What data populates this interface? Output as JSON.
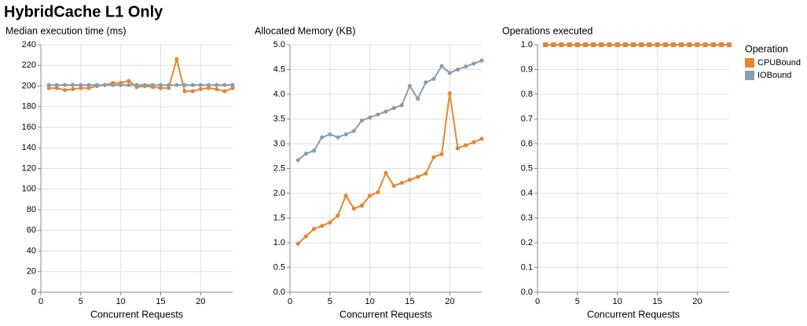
{
  "title": "HybridCache L1 Only",
  "legend_title": "Operation",
  "chart_data": [
    {
      "type": "line",
      "title": "Median execution time (ms)",
      "xlabel": "Concurrent Requests",
      "x": [
        1,
        2,
        3,
        4,
        5,
        6,
        7,
        8,
        9,
        10,
        11,
        12,
        13,
        14,
        15,
        16,
        17,
        18,
        19,
        20,
        21,
        22,
        23,
        24
      ],
      "xlim": [
        0,
        24
      ],
      "xticks": [
        0,
        5,
        10,
        15,
        20
      ],
      "ylim": [
        0,
        240
      ],
      "yticks": [
        0,
        20,
        40,
        60,
        80,
        100,
        120,
        140,
        160,
        180,
        200,
        220,
        240
      ],
      "grid": true,
      "marker": "circle",
      "series": [
        {
          "name": "CPUBound",
          "color": "#e8852f",
          "values": [
            198,
            198,
            196,
            197,
            198,
            198,
            200,
            201,
            203,
            203,
            205,
            199,
            200,
            199,
            198,
            198,
            226,
            195,
            195,
            197,
            198,
            197,
            195,
            198
          ]
        },
        {
          "name": "IOBound",
          "color": "#8a9dab",
          "values": [
            201,
            201,
            201,
            201,
            201,
            201,
            201,
            201,
            201,
            201,
            201,
            201,
            201,
            201,
            201,
            201,
            201,
            201,
            201,
            201,
            201,
            201,
            201,
            201
          ]
        }
      ]
    },
    {
      "type": "line",
      "title": "Allocated Memory (KB)",
      "xlabel": "Concurrent Requests",
      "x": [
        1,
        2,
        3,
        4,
        5,
        6,
        7,
        8,
        9,
        10,
        11,
        12,
        13,
        14,
        15,
        16,
        17,
        18,
        19,
        20,
        21,
        22,
        23,
        24
      ],
      "xlim": [
        0,
        24
      ],
      "xticks": [
        0,
        5,
        10,
        15,
        20
      ],
      "ylim": [
        0,
        5
      ],
      "yticks": [
        {
          "value": 0,
          "label": "0.0"
        },
        0.5,
        {
          "value": 1,
          "label": "1.0"
        },
        1.5,
        {
          "value": 2,
          "label": "2.0"
        },
        2.5,
        {
          "value": 3,
          "label": "3.0"
        },
        3.5,
        {
          "value": 4,
          "label": "4.0"
        },
        4.5,
        {
          "value": 5,
          "label": "5.0"
        }
      ],
      "grid": true,
      "marker": "circle",
      "series": [
        {
          "name": "CPUBound",
          "color": "#e8852f",
          "values": [
            0.98,
            1.13,
            1.28,
            1.34,
            1.41,
            1.55,
            1.95,
            1.69,
            1.75,
            1.95,
            2.02,
            2.41,
            2.15,
            2.21,
            2.27,
            2.33,
            2.4,
            2.73,
            2.79,
            4.02,
            2.91,
            2.97,
            3.03,
            3.1
          ]
        },
        {
          "name": "IOBound",
          "color": "#8a9dab",
          "values": [
            2.67,
            2.8,
            2.86,
            3.13,
            3.19,
            3.13,
            3.19,
            3.26,
            3.47,
            3.53,
            3.59,
            3.65,
            3.72,
            3.78,
            4.17,
            3.91,
            4.24,
            4.31,
            4.57,
            4.43,
            4.5,
            4.56,
            4.62,
            4.68
          ]
        }
      ]
    },
    {
      "type": "line",
      "title": "Operations executed",
      "xlabel": "Concurrent Requests",
      "x": [
        1,
        2,
        3,
        4,
        5,
        6,
        7,
        8,
        9,
        10,
        11,
        12,
        13,
        14,
        15,
        16,
        17,
        18,
        19,
        20,
        21,
        22,
        23,
        24
      ],
      "xlim": [
        0,
        24
      ],
      "xticks": [
        0,
        5,
        10,
        15,
        20
      ],
      "ylim": [
        0,
        1
      ],
      "yticks": [
        {
          "value": 0,
          "label": "0.0"
        },
        0.1,
        0.2,
        0.3,
        0.4,
        0.5,
        0.6,
        0.7,
        0.8,
        0.9,
        {
          "value": 1,
          "label": "1.0"
        }
      ],
      "grid": true,
      "marker": "square",
      "series": [
        {
          "name": "IOBound",
          "color": "#8a9dab",
          "values": [
            1,
            1,
            1,
            1,
            1,
            1,
            1,
            1,
            1,
            1,
            1,
            1,
            1,
            1,
            1,
            1,
            1,
            1,
            1,
            1,
            1,
            1,
            1,
            1
          ]
        },
        {
          "name": "CPUBound",
          "color": "#e8852f",
          "values": [
            1,
            1,
            1,
            1,
            1,
            1,
            1,
            1,
            1,
            1,
            1,
            1,
            1,
            1,
            1,
            1,
            1,
            1,
            1,
            1,
            1,
            1,
            1,
            1
          ]
        }
      ]
    }
  ]
}
